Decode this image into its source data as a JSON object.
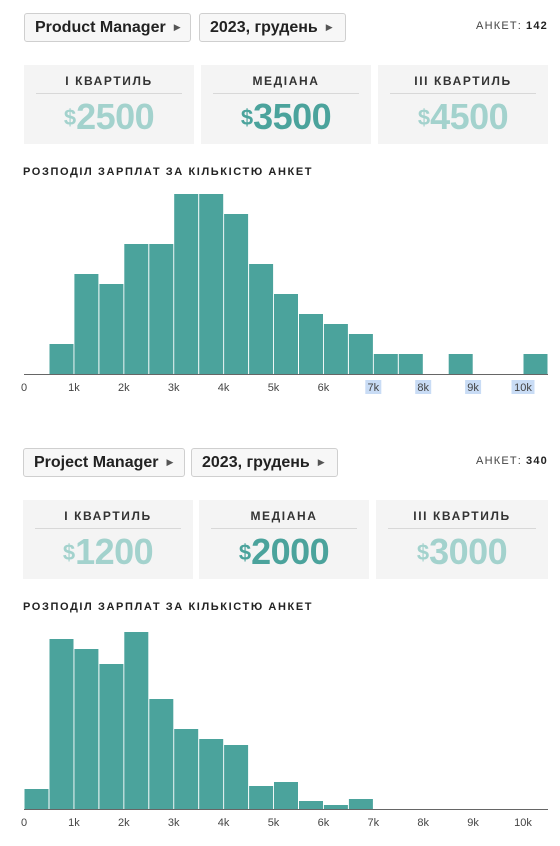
{
  "charts": [
    {
      "position_label": "Product Manager",
      "period_label": "2023, грудень",
      "responses_label": "АНКЕТ:",
      "responses_count": "142",
      "stats": [
        {
          "label": "І КВАРТИЛЬ",
          "currency": "$",
          "value": "2500"
        },
        {
          "label": "МЕДІАНА",
          "currency": "$",
          "value": "3500"
        },
        {
          "label": "ІІІ КВАРТИЛЬ",
          "currency": "$",
          "value": "4500"
        }
      ],
      "distribution_title": "РОЗПОДІЛ ЗАРПЛАТ ЗА КІЛЬКІСТЮ АНКЕТ"
    },
    {
      "position_label": "Project Manager",
      "period_label": "2023, грудень",
      "responses_label": "АНКЕТ:",
      "responses_count": "340",
      "stats": [
        {
          "label": "І КВАРТИЛЬ",
          "currency": "$",
          "value": "1200"
        },
        {
          "label": "МЕДІАНА",
          "currency": "$",
          "value": "2000"
        },
        {
          "label": "ІІІ КВАРТИЛЬ",
          "currency": "$",
          "value": "3000"
        }
      ],
      "distribution_title": "РОЗПОДІЛ ЗАРПЛАТ ЗА КІЛЬКІСТЮ АНКЕТ"
    }
  ],
  "colors": {
    "bar": "#4ba39c",
    "stat_light": "#a3d2cd",
    "stat_dark": "#4ba39c",
    "axis": "#666666",
    "tick_highlight": "#c9dcf5"
  },
  "chart_data": [
    {
      "type": "bar",
      "title": "РОЗПОДІЛ ЗАРПЛАТ ЗА КІЛЬКІСТЮ АНКЕТ",
      "xlabel": "",
      "ylabel": "",
      "bin_width": 500,
      "xlim": [
        0,
        10500
      ],
      "ylim": [
        0,
        18
      ],
      "x_ticks": [
        0,
        1000,
        2000,
        3000,
        4000,
        5000,
        6000,
        7000,
        8000,
        9000,
        10000
      ],
      "x_tick_labels": [
        "0",
        "1k",
        "2k",
        "3k",
        "4k",
        "5k",
        "6k",
        "7k",
        "8k",
        "9k",
        "10k"
      ],
      "highlighted_ticks": [
        "7k",
        "8k",
        "9k",
        "10k"
      ],
      "grid": false,
      "x": [
        0,
        500,
        1000,
        1500,
        2000,
        2500,
        3000,
        3500,
        4000,
        4500,
        5000,
        5500,
        6000,
        6500,
        7000,
        7500,
        8000,
        8500,
        9000,
        9500,
        10000
      ],
      "values": [
        0,
        3,
        10,
        9,
        13,
        13,
        18,
        18,
        16,
        11,
        8,
        6,
        5,
        4,
        2,
        2,
        0,
        2,
        0,
        0,
        2
      ]
    },
    {
      "type": "bar",
      "title": "РОЗПОДІЛ ЗАРПЛАТ ЗА КІЛЬКІСТЮ АНКЕТ",
      "xlabel": "",
      "ylabel": "",
      "bin_width": 500,
      "xlim": [
        0,
        10500
      ],
      "ylim": [
        0,
        18
      ],
      "x_ticks": [
        0,
        1000,
        2000,
        3000,
        4000,
        5000,
        6000,
        7000,
        8000,
        9000,
        10000
      ],
      "x_tick_labels": [
        "0",
        "1k",
        "2k",
        "3k",
        "4k",
        "5k",
        "6k",
        "7k",
        "8k",
        "9k",
        "10k"
      ],
      "highlighted_ticks": [],
      "grid": false,
      "x": [
        0,
        500,
        1000,
        1500,
        2000,
        2500,
        3000,
        3500,
        4000,
        4500,
        5000,
        5500,
        6000,
        6500
      ],
      "values": [
        2,
        17,
        16,
        14.5,
        17.7,
        11,
        8,
        7,
        6.4,
        2.3,
        2.7,
        0.8,
        0.4,
        1
      ]
    }
  ]
}
